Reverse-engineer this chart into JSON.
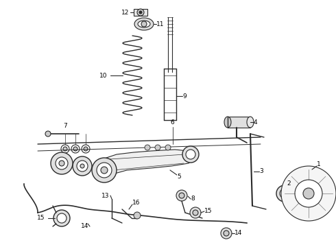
{
  "background_color": "#ffffff",
  "line_color": "#2a2a2a",
  "label_color": "#000000",
  "fig_width": 4.9,
  "fig_height": 3.6,
  "dpi": 100
}
